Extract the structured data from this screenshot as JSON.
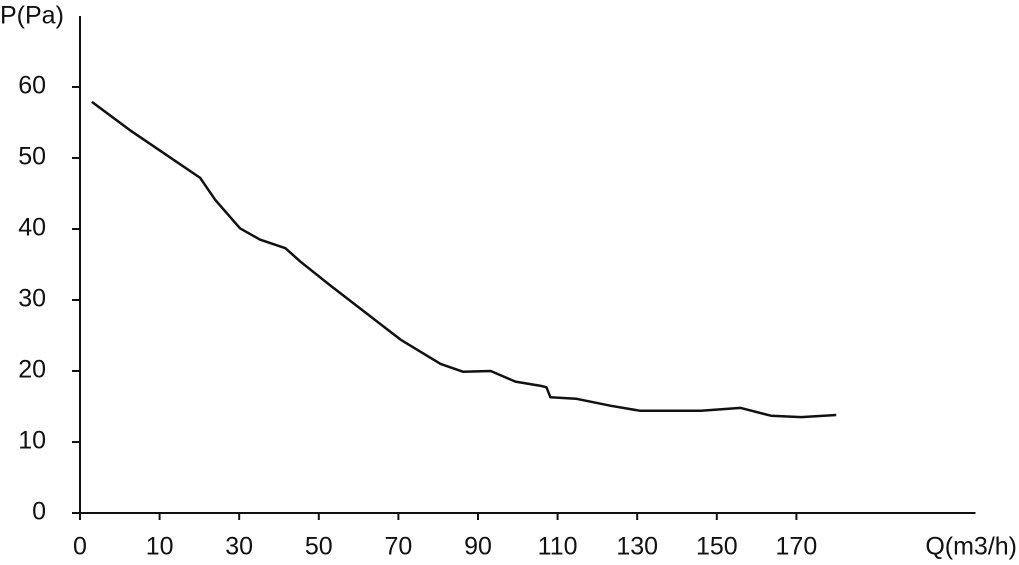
{
  "chart_data": {
    "type": "line",
    "y_label": "P(Pa)",
    "x_label": "Q(m3/h)",
    "x_scale": "even-ticks",
    "xlim": [
      0,
      215
    ],
    "xticks": [
      0,
      10,
      30,
      50,
      70,
      90,
      110,
      130,
      150,
      170
    ],
    "ylim": [
      0,
      70
    ],
    "yticks": [
      0,
      10,
      20,
      30,
      40,
      50,
      60
    ],
    "grid": false,
    "series": [
      {
        "color": "#111111",
        "x": [
          1.5,
          6.3,
          12.6,
          20.2,
          24,
          30.2,
          35.2,
          41.6,
          45.4,
          52.8,
          70.6,
          80.6,
          86.2,
          93.2,
          99.4,
          105.8,
          107.2,
          108.2,
          114.6,
          123.4,
          130.8,
          146,
          156,
          163.6,
          171.2,
          180
        ],
        "values": [
          57.9,
          53.9,
          50.1,
          47.2,
          44.1,
          40.1,
          38.5,
          37.3,
          35.4,
          32.1,
          24.4,
          21,
          19.9,
          20,
          18.5,
          17.9,
          17.7,
          16.3,
          16.1,
          15.1,
          14.4,
          14.4,
          14.8,
          13.7,
          13.5,
          13.8
        ]
      }
    ]
  }
}
